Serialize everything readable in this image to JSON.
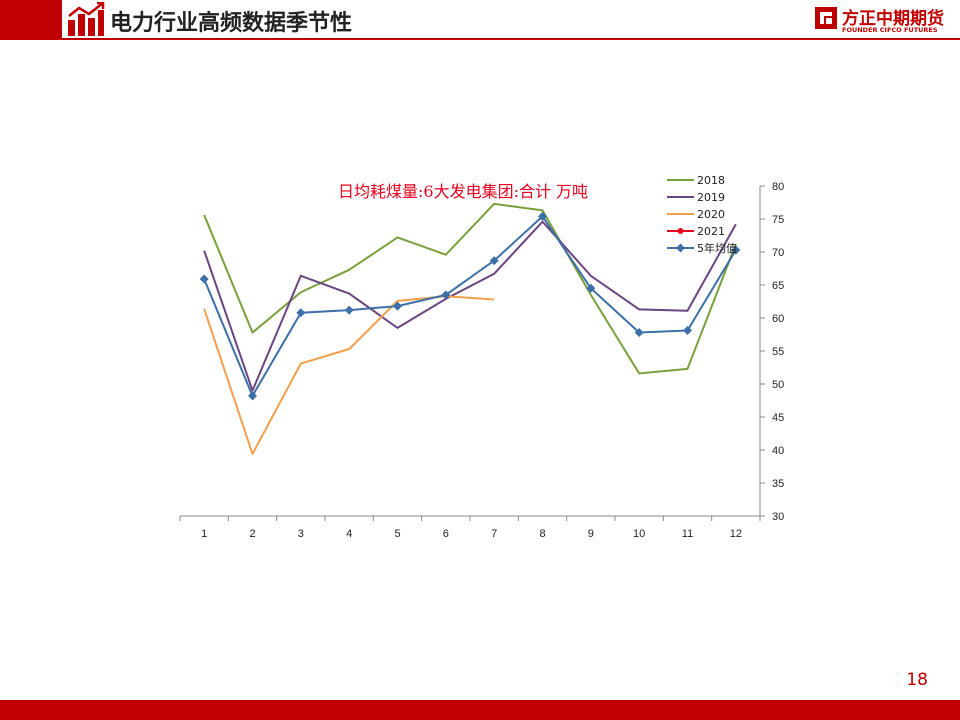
{
  "header": {
    "title": "电力行业高频数据季节性",
    "logo_cn": "方正中期期货",
    "logo_en": "FOUNDER CIFCO FUTURES",
    "icon": "chart-growth-icon"
  },
  "page_number": "18",
  "colors": {
    "brand_red": "#c00000",
    "title_red": "#e8001c",
    "2018": "#77a03a",
    "2019": "#6b4482",
    "2020": "#f0a04a",
    "2021": "#e8001c",
    "5y": "#3d6fa8"
  },
  "chart_data": {
    "type": "line",
    "title": "日均耗煤量:6大发电集团:合计 万吨",
    "categories": [
      "1",
      "2",
      "3",
      "4",
      "5",
      "6",
      "7",
      "8",
      "9",
      "10",
      "11",
      "12"
    ],
    "ylim": [
      30,
      80
    ],
    "yticks": [
      "80",
      "75",
      "70",
      "65",
      "60",
      "55",
      "50",
      "45",
      "40",
      "35",
      "30"
    ],
    "legend_position": "top-right",
    "grid": false,
    "series": [
      {
        "name": "2018",
        "color": "#77a03a",
        "marker": "none",
        "values": [
          75.6,
          57.8,
          63.9,
          67.3,
          72.2,
          69.6,
          77.3,
          76.3,
          63.5,
          51.6,
          52.3,
          71.2
        ]
      },
      {
        "name": "2019",
        "color": "#6b4482",
        "marker": "none",
        "values": [
          70.2,
          49.0,
          66.4,
          63.7,
          58.5,
          62.9,
          66.7,
          74.6,
          66.4,
          61.3,
          61.1,
          74.2
        ]
      },
      {
        "name": "2020",
        "color": "#f0a04a",
        "marker": "none",
        "values": [
          61.4,
          39.4,
          53.1,
          55.3,
          62.6,
          63.3,
          62.8,
          null,
          null,
          null,
          null,
          null
        ]
      },
      {
        "name": "2021",
        "color": "#e8001c",
        "marker": "circle",
        "values": [
          null,
          null,
          null,
          null,
          null,
          null,
          null,
          null,
          null,
          null,
          null,
          null
        ]
      },
      {
        "name": "5年均值",
        "color": "#3d6fa8",
        "marker": "diamond",
        "values": [
          65.9,
          48.2,
          60.8,
          61.2,
          61.8,
          63.5,
          68.7,
          75.4,
          64.5,
          57.8,
          58.1,
          70.3
        ]
      }
    ]
  }
}
